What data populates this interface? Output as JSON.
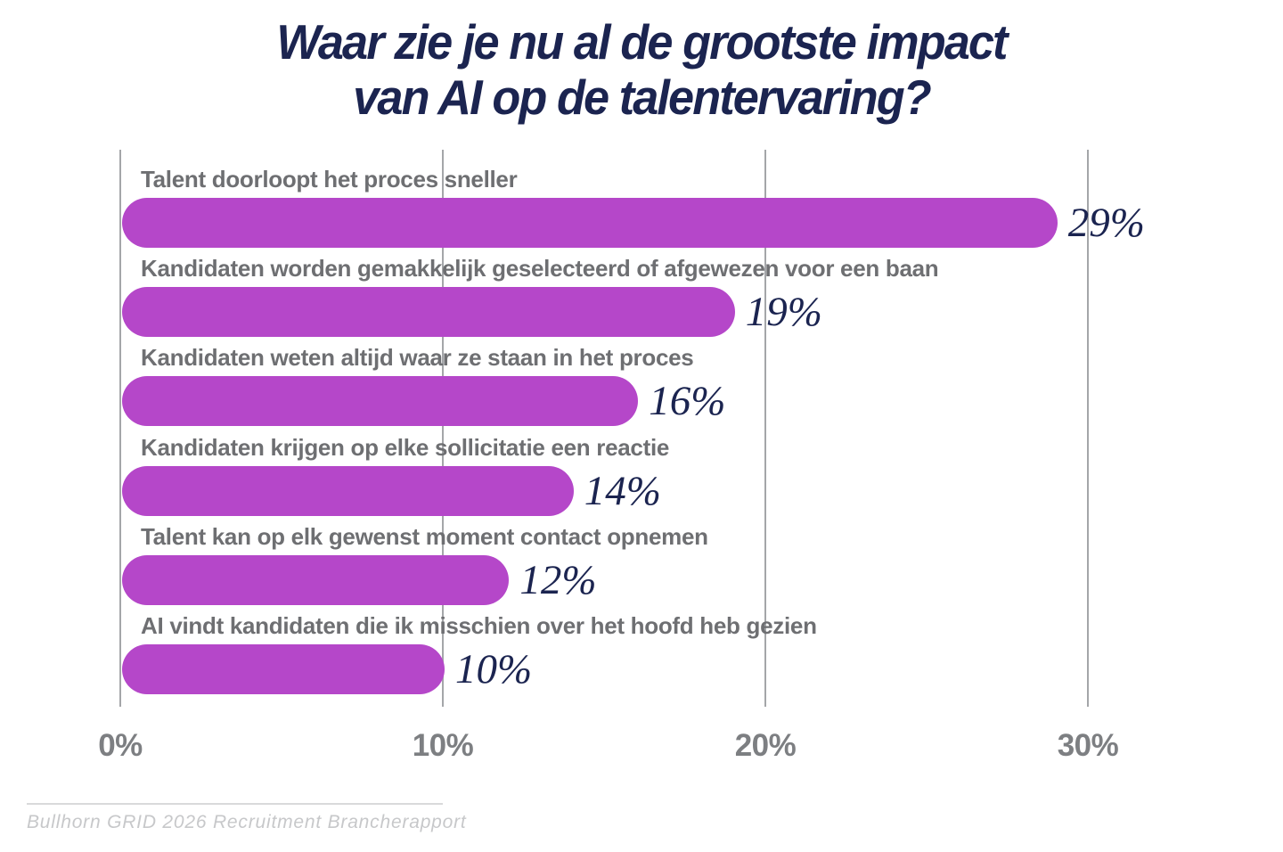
{
  "title": {
    "line1": "Waar zie je nu al de grootste impact",
    "line2": "van AI op de talentervaring?"
  },
  "chart_data": {
    "type": "bar",
    "orientation": "horizontal",
    "title": "Waar zie je nu al de grootste impact van AI op de talentervaring?",
    "categories": [
      "Talent doorloopt het proces sneller",
      "Kandidaten worden gemakkelijk geselecteerd of afgewezen voor een baan",
      "Kandidaten weten altijd waar ze staan in het proces",
      "Kandidaten krijgen op elke sollicitatie een reactie",
      "Talent kan op elk gewenst moment contact opnemen",
      "AI vindt kandidaten die ik misschien over het hoofd heb gezien"
    ],
    "values": [
      29,
      19,
      16,
      14,
      12,
      10
    ],
    "value_labels": [
      "29%",
      "19%",
      "16%",
      "14%",
      "12%",
      "10%"
    ],
    "x_tick_labels": [
      "0%",
      "10%",
      "20%",
      "30%"
    ],
    "x_tick_values": [
      0,
      10,
      20,
      30
    ],
    "xlim": [
      0,
      30
    ],
    "grid": true,
    "legend": false,
    "colors": {
      "bar": "#b547c9",
      "value_text": "#1b2450",
      "category_text": "#6e6f72",
      "tick_text": "#7d7f82",
      "gridline": "#a4a6a9",
      "title_text": "#1b2450"
    }
  },
  "footer": {
    "source": "Bullhorn GRID 2026 Recruitment Brancherapport"
  }
}
